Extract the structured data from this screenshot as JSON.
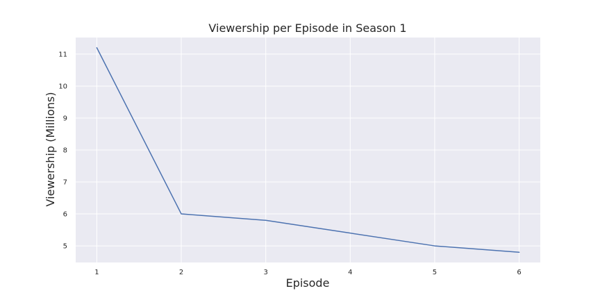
{
  "chart_data": {
    "type": "line",
    "title": "Viewership per Episode in Season 1",
    "xlabel": "Episode",
    "ylabel": "Viewership (Millions)",
    "x": [
      1,
      2,
      3,
      4,
      5,
      6
    ],
    "series": [
      {
        "values": [
          11.2,
          6.0,
          5.8,
          5.4,
          5.0,
          4.8
        ],
        "color": "#4c72b0"
      }
    ],
    "xticks": [
      "1",
      "2",
      "3",
      "4",
      "5",
      "6"
    ],
    "yticks": [
      "5",
      "6",
      "7",
      "8",
      "9",
      "10",
      "11"
    ],
    "xlim": [
      0.75,
      6.25
    ],
    "ylim": [
      4.48,
      11.52
    ],
    "grid": true,
    "background_color": "#eaeaf2",
    "grid_color": "#ffffff"
  }
}
